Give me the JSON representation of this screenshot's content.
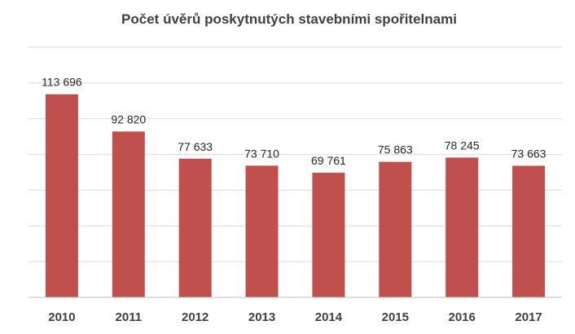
{
  "chart_data": {
    "type": "bar",
    "title": "Počet úvěrů poskytnutých  stavebními  spořitelnami",
    "xlabel": "",
    "ylabel": "",
    "categories": [
      "2010",
      "2011",
      "2012",
      "2013",
      "2014",
      "2015",
      "2016",
      "2017"
    ],
    "values": [
      113696,
      92820,
      77633,
      73710,
      69761,
      75863,
      78245,
      73663
    ],
    "data_labels": [
      "113 696",
      "92 820",
      "77 633",
      "73 710",
      "69 761",
      "75 863",
      "78 245",
      "73 663"
    ],
    "ylim": [
      0,
      140000
    ],
    "y_gridline_step": 20000,
    "y_tick_labels_visible": false,
    "grid": true,
    "legend": "none",
    "bar_color": "#c0504d",
    "grid_color": "#d9d9d9",
    "axis_color": "#bfbfbf"
  }
}
